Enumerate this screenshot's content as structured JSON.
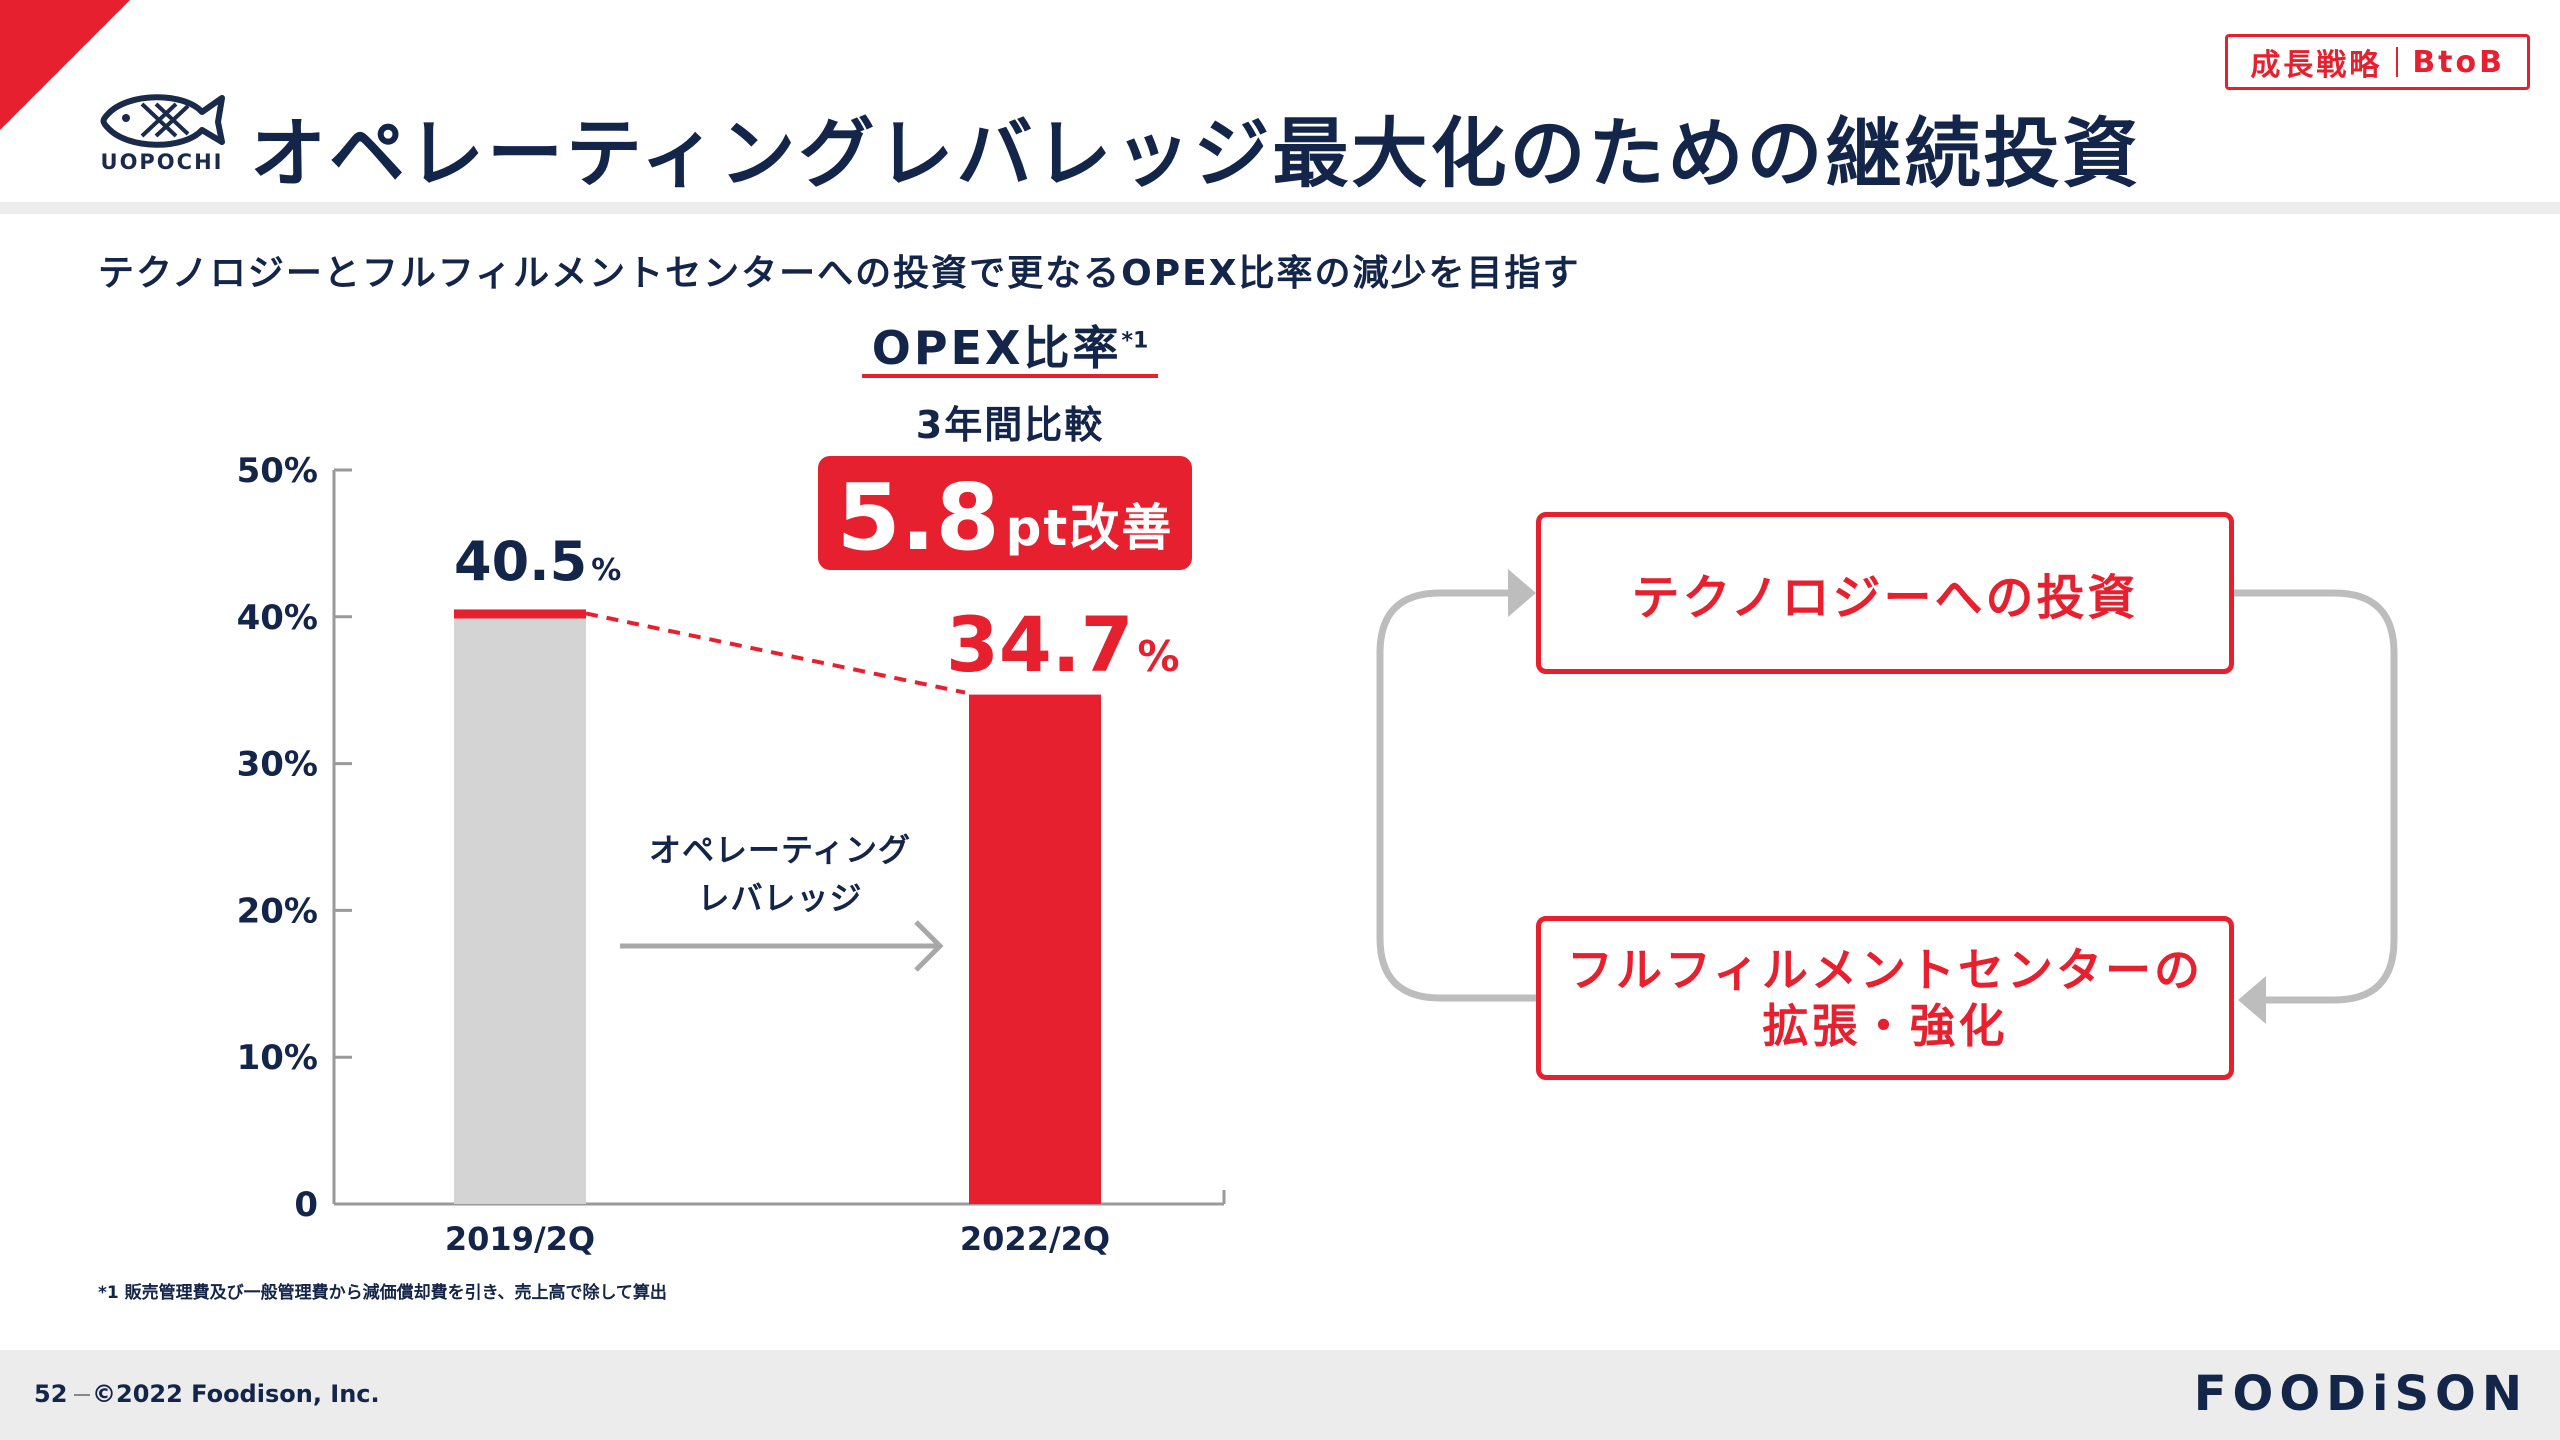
{
  "header": {
    "logo_text": "UOPOCHI",
    "title": "オペレーティングレバレッジ最大化のための継続投資",
    "tag_left": "成長戦略",
    "tag_right": "BtoB",
    "accent_color": "#e6202e",
    "navy_color": "#14254a"
  },
  "subtitle": "テクノロジーとフルフィルメントセンターへの投資で更なるOPEX比率の減少を目指す",
  "opex": {
    "title": "OPEX比率",
    "footnote_mark": "*1",
    "compare_label": "3年間比較",
    "improvement_value": "5.8",
    "improvement_unit": "pt改善"
  },
  "chart_data": {
    "type": "bar",
    "categories": [
      "2019/2Q",
      "2022/2Q"
    ],
    "values": [
      40.5,
      34.7
    ],
    "value_labels": [
      "40.5",
      "34.7"
    ],
    "value_unit": "%",
    "y_ticks": [
      "0",
      "10%",
      "20%",
      "30%",
      "40%",
      "50%"
    ],
    "ylim": [
      0,
      50
    ],
    "bar_colors": [
      "#d4d4d4",
      "#e6202e"
    ],
    "grid": false
  },
  "leverage_label_line1": "オペレーティング",
  "leverage_label_line2": "レバレッジ",
  "footnote": "*1 販売管理費及び一般管理費から減価償却費を引き、売上高で除して算出",
  "cycle": {
    "top_box": "テクノロジーへの投資",
    "bottom_box_line1": "フルフィルメントセンターの",
    "bottom_box_line2": "拡張・強化"
  },
  "footer": {
    "page_number": "52",
    "copyright": "©2022 Foodison, Inc.",
    "brand": "FOODiSON"
  }
}
